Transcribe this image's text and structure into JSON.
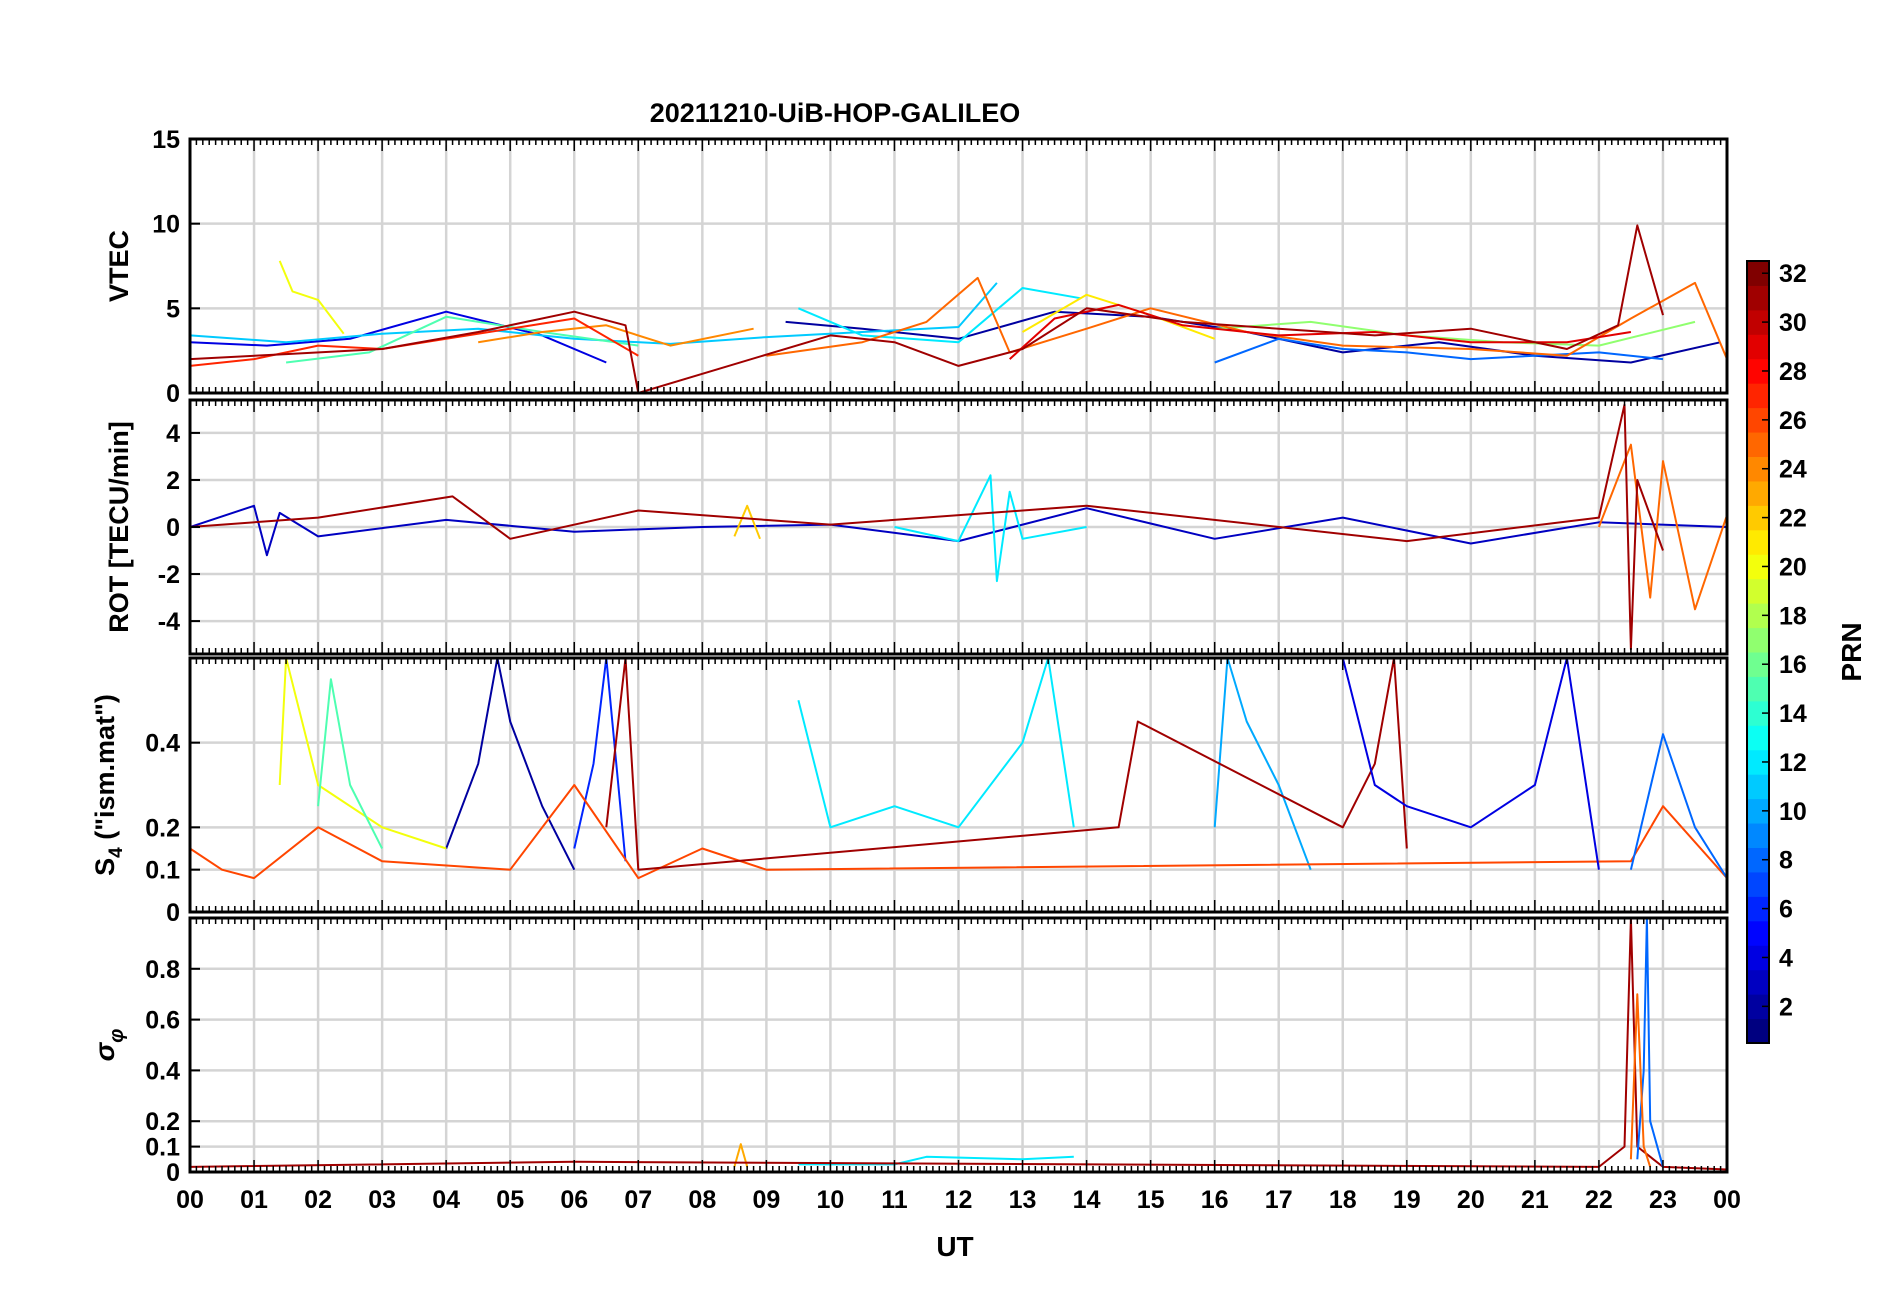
{
  "figure": {
    "title": "20211210-UiB-HOP-GALILEO",
    "xlabel": "UT",
    "x_tick_labels": [
      "00",
      "01",
      "02",
      "03",
      "04",
      "05",
      "06",
      "07",
      "08",
      "09",
      "10",
      "11",
      "12",
      "13",
      "14",
      "15",
      "16",
      "17",
      "18",
      "19",
      "20",
      "21",
      "22",
      "23",
      "00"
    ],
    "colorbar": {
      "label": "PRN",
      "range": [
        1,
        32
      ],
      "tick_labels": [
        "2",
        "4",
        "6",
        "8",
        "10",
        "12",
        "14",
        "16",
        "18",
        "20",
        "22",
        "24",
        "26",
        "28",
        "30",
        "32"
      ],
      "colormap": "jet"
    }
  },
  "chart_data": [
    {
      "type": "line",
      "id": "vtec",
      "ylabel": "VTEC",
      "xlim": [
        0,
        24
      ],
      "ylim": [
        0,
        15
      ],
      "yticks": [
        0,
        5,
        10,
        15
      ],
      "ytick_labels": [
        "0",
        "5",
        "10",
        "15"
      ],
      "grid": true,
      "series": [
        {
          "prn": 2,
          "x": [
            9.3,
            10.5,
            12.0,
            13.5,
            15.0,
            16.5,
            18.0,
            19.5,
            21.0,
            22.5,
            23.9
          ],
          "values": [
            4.2,
            3.8,
            3.2,
            4.8,
            4.5,
            3.6,
            2.4,
            3.0,
            2.2,
            1.8,
            3.0
          ]
        },
        {
          "prn": 4,
          "x": [
            0.0,
            1.2,
            2.5,
            4.0,
            5.5,
            6.5
          ],
          "values": [
            3.0,
            2.8,
            3.2,
            4.8,
            3.4,
            1.8
          ]
        },
        {
          "prn": 8,
          "x": [
            16.0,
            17.0,
            18.0,
            19.0,
            20.0,
            21.0,
            22.0,
            23.0
          ],
          "values": [
            1.8,
            3.2,
            2.6,
            2.4,
            2.0,
            2.2,
            2.4,
            2.0
          ]
        },
        {
          "prn": 11,
          "x": [
            0.0,
            1.5,
            3.0,
            4.5,
            6.0,
            7.5,
            9.0,
            10.5,
            12.0,
            12.6
          ],
          "values": [
            3.4,
            3.0,
            3.5,
            3.8,
            3.2,
            2.9,
            3.3,
            3.6,
            3.9,
            6.5
          ]
        },
        {
          "prn": 12,
          "x": [
            9.5,
            10.5,
            12.0,
            13.0,
            13.9
          ],
          "values": [
            5.0,
            3.4,
            3.0,
            6.2,
            5.6
          ]
        },
        {
          "prn": 15,
          "x": [
            1.5,
            2.8,
            4.0,
            5.5,
            7.0
          ],
          "values": [
            1.8,
            2.4,
            4.5,
            3.6,
            2.8
          ]
        },
        {
          "prn": 17,
          "x": [
            16.0,
            17.5,
            19.0,
            20.5,
            22.0,
            23.5
          ],
          "values": [
            3.8,
            4.2,
            3.4,
            3.0,
            2.8,
            4.2
          ]
        },
        {
          "prn": 20,
          "x": [
            1.4,
            1.6,
            2.0,
            2.4
          ],
          "values": [
            7.8,
            6.0,
            5.5,
            3.5
          ]
        },
        {
          "prn": 21,
          "x": [
            13.0,
            14.0,
            15.0,
            16.0
          ],
          "values": [
            3.6,
            5.8,
            4.6,
            3.2
          ]
        },
        {
          "prn": 24,
          "x": [
            4.5,
            5.5,
            6.5,
            7.5,
            8.8
          ],
          "values": [
            3.0,
            3.6,
            4.0,
            2.8,
            3.8
          ]
        },
        {
          "prn": 25,
          "x": [
            9.0,
            10.5,
            11.5,
            12.3,
            12.8,
            14.0,
            15.0,
            16.5,
            18.0,
            20.0,
            21.5,
            22.5,
            23.5,
            24.0
          ],
          "values": [
            2.2,
            3.0,
            4.2,
            6.8,
            2.4,
            3.8,
            5.0,
            3.6,
            2.8,
            2.6,
            2.2,
            4.4,
            6.5,
            2.0
          ]
        },
        {
          "prn": 27,
          "x": [
            0.0,
            1.0,
            2.0,
            3.0,
            4.0,
            5.0,
            6.0,
            7.0
          ],
          "values": [
            1.6,
            2.0,
            2.8,
            2.6,
            3.2,
            3.8,
            4.4,
            2.2
          ]
        },
        {
          "prn": 29,
          "x": [
            12.8,
            13.5,
            14.5,
            15.5,
            17.0,
            18.5,
            20.0,
            21.5,
            22.5
          ],
          "values": [
            2.0,
            4.4,
            5.2,
            4.0,
            3.4,
            3.6,
            3.0,
            3.0,
            3.6
          ]
        },
        {
          "prn": 31,
          "x": [
            0.0,
            1.5,
            3.0,
            4.5,
            6.0,
            6.8,
            7.0,
            10.0,
            11.0,
            12.0,
            13.0,
            14.0,
            15.5,
            17.0,
            18.5,
            20.0,
            21.5,
            22.3,
            22.6,
            23.0
          ],
          "values": [
            2.0,
            2.3,
            2.6,
            3.6,
            4.8,
            4.0,
            0.0,
            3.4,
            3.0,
            1.6,
            2.6,
            5.0,
            4.2,
            3.8,
            3.4,
            3.8,
            2.6,
            4.0,
            9.9,
            4.6
          ]
        }
      ]
    },
    {
      "type": "line",
      "id": "rot",
      "ylabel": "ROT [TECU/min]",
      "xlim": [
        0,
        24
      ],
      "ylim": [
        -5.4,
        5.4
      ],
      "yticks": [
        -4,
        -2,
        0,
        2,
        4
      ],
      "ytick_labels": [
        "-4",
        "-2",
        "0",
        "2",
        "4"
      ],
      "grid": true,
      "series": [
        {
          "prn": 3,
          "x": [
            0.0,
            1.0,
            1.2,
            1.4,
            2.0,
            4.0,
            6.0,
            8.0,
            10.0,
            12.0,
            14.0,
            16.0,
            18.0,
            20.0,
            22.0,
            24.0
          ],
          "values": [
            0.0,
            0.9,
            -1.2,
            0.6,
            -0.4,
            0.3,
            -0.2,
            0.0,
            0.1,
            -0.6,
            0.8,
            -0.5,
            0.4,
            -0.7,
            0.2,
            0.0
          ]
        },
        {
          "prn": 12,
          "x": [
            11.0,
            12.0,
            12.5,
            12.6,
            12.8,
            13.0,
            14.0
          ],
          "values": [
            0.0,
            -0.6,
            2.2,
            -2.3,
            1.5,
            -0.5,
            0.0
          ]
        },
        {
          "prn": 22,
          "x": [
            8.5,
            8.7,
            8.9
          ],
          "values": [
            -0.4,
            0.9,
            -0.5
          ]
        },
        {
          "prn": 25,
          "x": [
            22.0,
            22.5,
            22.8,
            23.0,
            23.5,
            24.0
          ],
          "values": [
            0.0,
            3.5,
            -3.0,
            2.8,
            -3.5,
            0.5
          ]
        },
        {
          "prn": 31,
          "x": [
            0.0,
            2.0,
            4.1,
            5.0,
            7.0,
            10.0,
            14.0,
            19.0,
            22.0,
            22.4,
            22.5,
            22.6,
            23.0
          ],
          "values": [
            0.0,
            0.4,
            1.3,
            -0.5,
            0.7,
            0.1,
            0.9,
            -0.6,
            0.4,
            5.2,
            -5.2,
            2.0,
            -1.0
          ]
        }
      ]
    },
    {
      "type": "line",
      "id": "s4",
      "ylabel": "S4 (\"ism.mat\")",
      "xlim": [
        0,
        24
      ],
      "ylim": [
        0,
        0.6
      ],
      "yticks": [
        0,
        0.1,
        0.2,
        0.4
      ],
      "ytick_labels": [
        "0",
        "0.1",
        "0.2",
        "0.4"
      ],
      "grid": true,
      "series": [
        {
          "prn": 2,
          "x": [
            4.0,
            4.5,
            4.8,
            5.0,
            5.5,
            6.0
          ],
          "values": [
            0.15,
            0.35,
            0.6,
            0.45,
            0.25,
            0.1
          ]
        },
        {
          "prn": 6,
          "x": [
            6.0,
            6.3,
            6.5,
            6.8
          ],
          "values": [
            0.15,
            0.35,
            0.6,
            0.12
          ]
        },
        {
          "prn": 10,
          "x": [
            16.0,
            16.2,
            16.5,
            17.0,
            17.5
          ],
          "values": [
            0.2,
            0.6,
            0.45,
            0.3,
            0.1
          ]
        },
        {
          "prn": 12,
          "x": [
            9.5,
            10.0,
            11.0,
            12.0,
            13.0,
            13.4,
            13.8
          ],
          "values": [
            0.5,
            0.2,
            0.25,
            0.2,
            0.4,
            0.6,
            0.2
          ]
        },
        {
          "prn": 20,
          "x": [
            1.4,
            1.5,
            2.0,
            3.0,
            4.0
          ],
          "values": [
            0.3,
            0.6,
            0.3,
            0.2,
            0.15
          ]
        },
        {
          "prn": 15,
          "x": [
            2.0,
            2.2,
            2.5,
            3.0
          ],
          "values": [
            0.25,
            0.55,
            0.3,
            0.15
          ]
        },
        {
          "prn": 26,
          "x": [
            0.0,
            0.5,
            1.0,
            2.0,
            3.0,
            5.0,
            6.0,
            7.0,
            8.0,
            9.0,
            22.5,
            23.0,
            24.0
          ],
          "values": [
            0.15,
            0.1,
            0.08,
            0.2,
            0.12,
            0.1,
            0.3,
            0.08,
            0.15,
            0.1,
            0.12,
            0.25,
            0.08
          ]
        },
        {
          "prn": 31,
          "x": [
            6.5,
            6.8,
            7.0,
            14.5,
            14.8,
            18.0,
            18.5,
            18.8,
            19.0
          ],
          "values": [
            0.2,
            0.6,
            0.1,
            0.2,
            0.45,
            0.2,
            0.35,
            0.6,
            0.15
          ]
        },
        {
          "prn": 4,
          "x": [
            18.0,
            18.5,
            19.0,
            20.0,
            21.0,
            21.5,
            22.0
          ],
          "values": [
            0.6,
            0.3,
            0.25,
            0.2,
            0.3,
            0.6,
            0.1
          ]
        },
        {
          "prn": 8,
          "x": [
            22.5,
            23.0,
            23.5,
            24.0
          ],
          "values": [
            0.1,
            0.42,
            0.2,
            0.08
          ]
        }
      ]
    },
    {
      "type": "line",
      "id": "sigma_phi",
      "ylabel": "σφ",
      "xlim": [
        0,
        24
      ],
      "ylim": [
        0,
        1.0
      ],
      "yticks": [
        0,
        0.1,
        0.2,
        0.4,
        0.6,
        0.8
      ],
      "ytick_labels": [
        "0",
        "0.1",
        "0.2",
        "0.4",
        "0.6",
        "0.8"
      ],
      "grid": true,
      "series": [
        {
          "prn": 12,
          "x": [
            9.5,
            11.0,
            11.5,
            13.0,
            13.8
          ],
          "values": [
            0.03,
            0.03,
            0.06,
            0.05,
            0.06
          ]
        },
        {
          "prn": 23,
          "x": [
            8.5,
            8.6,
            8.7
          ],
          "values": [
            0.02,
            0.11,
            0.02
          ]
        },
        {
          "prn": 31,
          "x": [
            0.0,
            6.0,
            22.0,
            22.4,
            22.5,
            22.6,
            23.0,
            24.0
          ],
          "values": [
            0.02,
            0.04,
            0.02,
            0.1,
            1.0,
            0.1,
            0.02,
            0.01
          ]
        },
        {
          "prn": 8,
          "x": [
            22.6,
            22.7,
            22.75,
            22.8,
            23.0
          ],
          "values": [
            0.05,
            0.4,
            1.0,
            0.2,
            0.02
          ]
        },
        {
          "prn": 25,
          "x": [
            22.5,
            22.6,
            22.7,
            22.8
          ],
          "values": [
            0.05,
            0.7,
            0.1,
            0.02
          ]
        }
      ]
    }
  ]
}
